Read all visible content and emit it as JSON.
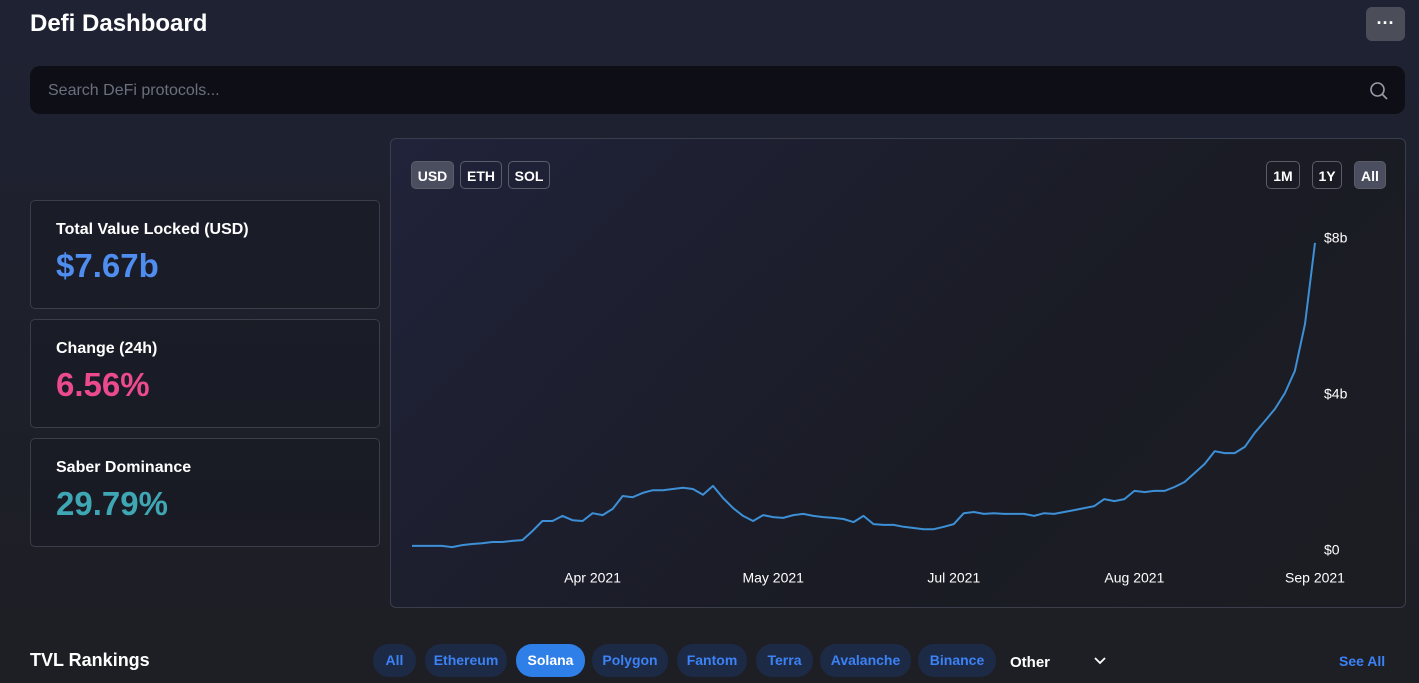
{
  "header": {
    "title": "Defi Dashboard",
    "menu": "···"
  },
  "search": {
    "placeholder": "Search DeFi protocols..."
  },
  "stats": [
    {
      "label": "Total Value Locked (USD)",
      "value": "$7.67b"
    },
    {
      "label": "Change (24h)",
      "value": "6.56%"
    },
    {
      "label": "Saber Dominance",
      "value": "29.79%"
    }
  ],
  "chart_controls": {
    "currencies": [
      "USD",
      "ETH",
      "SOL"
    ],
    "ranges": [
      "1M",
      "1Y",
      "All"
    ]
  },
  "chart_data": {
    "type": "line",
    "color": "#3d8fd6",
    "categories": [
      null,
      null,
      null,
      null,
      null,
      null,
      null,
      null,
      null,
      null,
      null,
      null,
      null,
      null,
      null,
      null,
      null,
      null,
      "Apr 2021",
      null,
      null,
      null,
      null,
      null,
      null,
      null,
      null,
      null,
      null,
      null,
      null,
      null,
      null,
      null,
      null,
      null,
      "May 2021",
      null,
      null,
      null,
      null,
      null,
      null,
      null,
      null,
      null,
      null,
      null,
      null,
      null,
      null,
      null,
      null,
      null,
      "Jul 2021",
      null,
      null,
      null,
      null,
      null,
      null,
      null,
      null,
      null,
      null,
      null,
      null,
      null,
      null,
      null,
      null,
      null,
      "Aug 2021",
      null,
      null,
      null,
      null,
      null,
      null,
      null,
      null,
      null,
      null,
      null,
      null,
      null,
      null,
      null,
      null,
      null,
      "Sep 2021"
    ],
    "values": [
      0.13,
      0.13,
      0.13,
      0.13,
      0.1,
      0.15,
      0.18,
      0.2,
      0.23,
      0.23,
      0.26,
      0.28,
      0.51,
      0.77,
      0.77,
      0.9,
      0.79,
      0.77,
      0.97,
      0.92,
      1.08,
      1.41,
      1.38,
      1.49,
      1.56,
      1.56,
      1.59,
      1.62,
      1.59,
      1.44,
      1.67,
      1.36,
      1.1,
      0.9,
      0.77,
      0.92,
      0.87,
      0.85,
      0.92,
      0.95,
      0.9,
      0.87,
      0.85,
      0.82,
      0.74,
      0.9,
      0.69,
      0.67,
      0.67,
      0.62,
      0.59,
      0.56,
      0.56,
      0.62,
      0.69,
      0.97,
      1.0,
      0.95,
      0.97,
      0.95,
      0.95,
      0.95,
      0.9,
      0.97,
      0.95,
      1.0,
      1.05,
      1.1,
      1.15,
      1.33,
      1.28,
      1.33,
      1.54,
      1.51,
      1.54,
      1.54,
      1.64,
      1.77,
      2.0,
      2.23,
      2.56,
      2.51,
      2.51,
      2.67,
      3.03,
      3.33,
      3.64,
      4.05,
      4.62,
      5.82,
      7.9
    ],
    "ylim": [
      0,
      8
    ],
    "yticks": [
      {
        "value": 0,
        "label": "$0"
      },
      {
        "value": 4,
        "label": "$4b"
      },
      {
        "value": 8,
        "label": "$8b"
      }
    ]
  },
  "rankings": {
    "title": "TVL Rankings",
    "filters": [
      "All",
      "Ethereum",
      "Solana",
      "Polygon",
      "Fantom",
      "Terra",
      "Avalanche",
      "Binance"
    ],
    "other": "Other",
    "see_all": "See All"
  }
}
